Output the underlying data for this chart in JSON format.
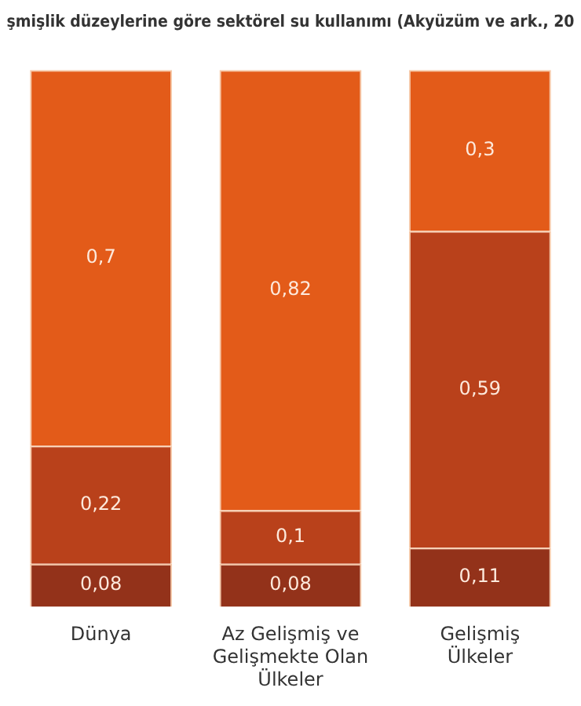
{
  "chart_data": {
    "type": "bar",
    "title": "şmişlik düzeylerine göre sektörel su kullanımı (Akyüzüm ve ark., 20",
    "categories": [
      "Dünya",
      "Az Gelişmiş ve Gelişmekte Olan Ülkeler",
      "Gelişmiş Ülkeler"
    ],
    "stacked": true,
    "grid": false,
    "legend": false,
    "series": [
      {
        "color": "#93321a",
        "values": [
          0.08,
          0.08,
          0.11
        ],
        "value_labels": [
          "0,08",
          "0,08",
          "0,11"
        ]
      },
      {
        "color": "#b9411b",
        "values": [
          0.22,
          0.1,
          0.59
        ],
        "value_labels": [
          "0,22",
          "0,1",
          "0,59"
        ]
      },
      {
        "color": "#e35b19",
        "values": [
          0.7,
          0.82,
          0.3
        ],
        "value_labels": [
          "0,7",
          "0,82",
          "0,3"
        ]
      }
    ]
  }
}
